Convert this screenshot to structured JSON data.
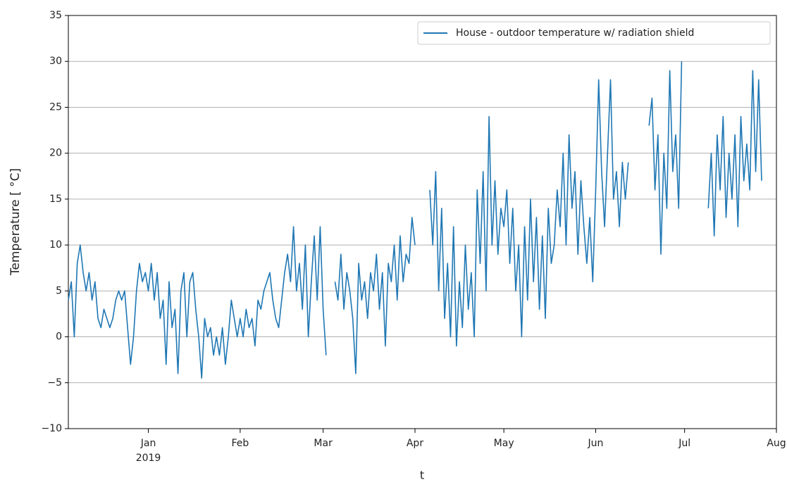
{
  "chart_data": {
    "type": "line",
    "xlabel": "t",
    "ylabel": "Temperature [ °C]",
    "categories": [
      null,
      null,
      null,
      null,
      null,
      null,
      null,
      null,
      null,
      null,
      null,
      null,
      null,
      null,
      null,
      null,
      null,
      null,
      null,
      null,
      null,
      null,
      null,
      null,
      null,
      null,
      null,
      "Jan\n2019",
      null,
      null,
      null,
      null,
      null,
      null,
      null,
      null,
      null,
      null,
      null,
      null,
      null,
      null,
      null,
      null,
      null,
      null,
      null,
      null,
      null,
      null,
      null,
      null,
      null,
      null,
      null,
      null,
      null,
      null,
      "Feb",
      null,
      null,
      null,
      null,
      null,
      null,
      null,
      null,
      null,
      null,
      null,
      null,
      null,
      null,
      null,
      null,
      null,
      null,
      null,
      null,
      null,
      null,
      null,
      null,
      null,
      null,
      null,
      "Mar",
      null,
      null,
      null,
      null,
      null,
      null,
      null,
      null,
      null,
      null,
      null,
      null,
      null,
      null,
      null,
      null,
      null,
      null,
      null,
      null,
      null,
      null,
      null,
      null,
      null,
      null,
      null,
      null,
      null,
      null,
      "Apr",
      null,
      null,
      null,
      null,
      null,
      null,
      null,
      null,
      null,
      null,
      null,
      null,
      null,
      null,
      null,
      null,
      null,
      null,
      null,
      null,
      null,
      null,
      null,
      null,
      null,
      null,
      null,
      null,
      null,
      "May",
      null,
      null,
      null,
      null,
      null,
      null,
      null,
      null,
      null,
      null,
      null,
      null,
      null,
      null,
      null,
      null,
      null,
      null,
      null,
      null,
      null,
      null,
      null,
      null,
      null,
      null,
      null,
      null,
      null,
      null,
      "Jun",
      null,
      null,
      null,
      null,
      null,
      null,
      null,
      null,
      null,
      null,
      null,
      null,
      null,
      null,
      null,
      null,
      null,
      null,
      null,
      null,
      null,
      null,
      null,
      null,
      null,
      null,
      null,
      null,
      null,
      "Jul",
      null,
      null,
      null,
      null,
      null,
      null,
      null,
      null,
      null,
      null,
      null,
      null,
      null,
      null,
      null,
      null,
      null,
      null,
      null,
      null,
      null,
      null,
      null,
      null,
      null,
      null,
      null,
      null,
      null,
      null,
      "Aug"
    ],
    "series": [
      {
        "name": "House - outdoor temperature w/ radiation shield",
        "color": "#1f77b4",
        "values": [
          4,
          6,
          0,
          8,
          10,
          7,
          5,
          7,
          4,
          6,
          2,
          1,
          3,
          2,
          1,
          2,
          4,
          5,
          4,
          5,
          1,
          -3,
          0,
          5,
          8,
          6,
          7,
          5,
          8,
          4,
          7,
          2,
          4,
          -3,
          6,
          1,
          3,
          -4,
          5,
          7,
          0,
          6,
          7,
          3,
          0,
          -4.5,
          2,
          0,
          1,
          -2,
          0,
          -2,
          1,
          -3,
          0,
          4,
          2,
          0,
          2,
          0,
          3,
          1,
          2,
          -1,
          4,
          3,
          5,
          6,
          7,
          4,
          2,
          1,
          4,
          7,
          9,
          6,
          12,
          5,
          8,
          3,
          10,
          0,
          6,
          11,
          4,
          12,
          3,
          -2,
          null,
          null,
          6,
          4,
          9,
          3,
          7,
          5,
          2,
          -4,
          8,
          4,
          6,
          2,
          7,
          5,
          9,
          3,
          7,
          -1,
          8,
          6,
          10,
          4,
          11,
          6,
          9,
          8,
          13,
          10,
          null,
          null,
          null,
          null,
          16,
          10,
          18,
          5,
          14,
          2,
          8,
          0,
          12,
          -1,
          6,
          1,
          10,
          3,
          7,
          0,
          16,
          8,
          18,
          5,
          24,
          10,
          17,
          9,
          14,
          12,
          16,
          8,
          14,
          5,
          10,
          0,
          12,
          4,
          15,
          6,
          13,
          3,
          11,
          2,
          14,
          8,
          10,
          16,
          12,
          20,
          10,
          22,
          14,
          18,
          9,
          17,
          12,
          8,
          13,
          6,
          16,
          28,
          18,
          12,
          20,
          28,
          15,
          18,
          12,
          19,
          15,
          19,
          null,
          null,
          null,
          null,
          null,
          null,
          23,
          26,
          16,
          22,
          9,
          20,
          14,
          29,
          18,
          22,
          14,
          30,
          null,
          null,
          null,
          null,
          null,
          null,
          null,
          null,
          14,
          20,
          11,
          22,
          16,
          24,
          13,
          20,
          15,
          22,
          12,
          24,
          17,
          21,
          16,
          29,
          18,
          28,
          17,
          null,
          null,
          null,
          null,
          null
        ]
      }
    ],
    "ylim": [
      -10,
      35
    ],
    "yticks": [
      {
        "value": -10,
        "label": "−10"
      },
      {
        "value": -5,
        "label": "−5"
      },
      0,
      5,
      10,
      15,
      20,
      25,
      30,
      35
    ],
    "grid": true,
    "legend": "upper right"
  }
}
